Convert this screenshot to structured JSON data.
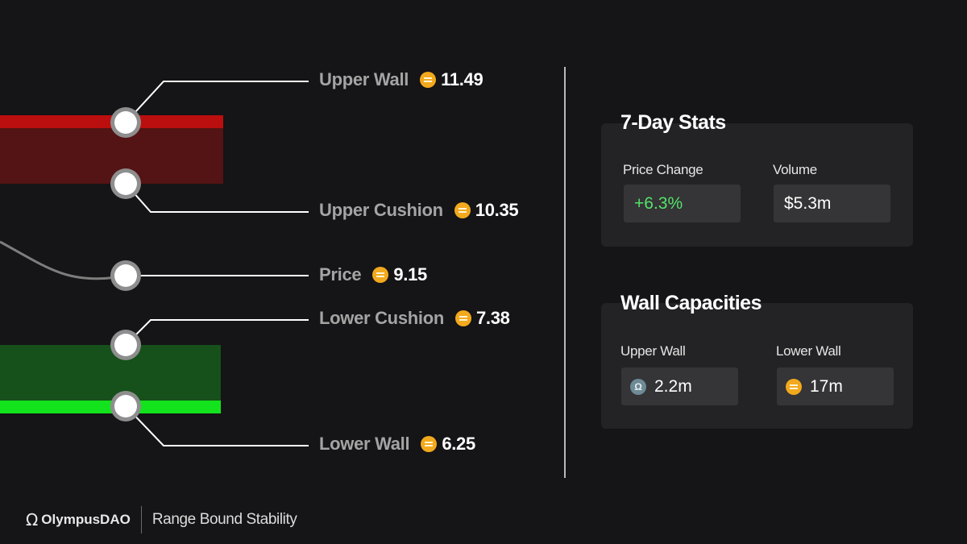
{
  "levels": [
    {
      "name": "Upper Wall",
      "value": "11.49"
    },
    {
      "name": "Upper Cushion",
      "value": "10.35"
    },
    {
      "name": "Price",
      "value": "9.15"
    },
    {
      "name": "Lower Cushion",
      "value": "7.38"
    },
    {
      "name": "Lower Wall",
      "value": "6.25"
    }
  ],
  "colors": {
    "background": "#151416",
    "upper_wall": "#bb0e0e",
    "upper_band": "#541314",
    "lower_band": "#16501a",
    "lower_wall": "#12e31c",
    "positive": "#52e36a",
    "coin": "#f2a91d"
  },
  "stats": {
    "title": "7-Day Stats",
    "price_change_label": "Price Change",
    "price_change_value": "+6.3%",
    "volume_label": "Volume",
    "volume_value": "$5.3m"
  },
  "capacities": {
    "title": "Wall Capacities",
    "upper_label": "Upper Wall",
    "upper_icon": "ohm-icon",
    "upper_value": "2.2m",
    "lower_label": "Lower Wall",
    "lower_icon": "dai-icon",
    "lower_value": "17m"
  },
  "footer": {
    "brand": "OlympusDAO",
    "subtitle": "Range Bound Stability"
  }
}
